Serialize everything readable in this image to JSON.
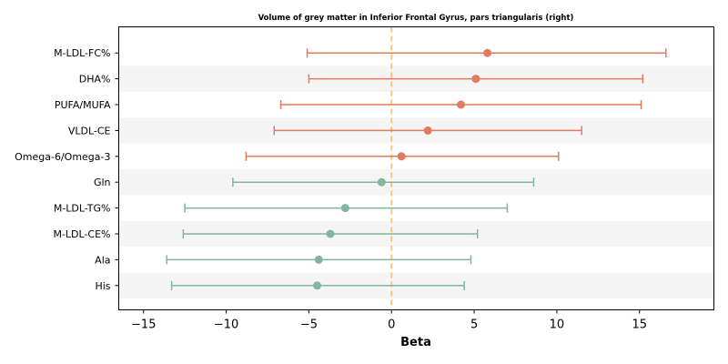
{
  "chart_data": {
    "type": "forest",
    "title": "Volume of grey matter in Inferior Frontal Gyrus, pars triangularis (right)",
    "xlabel": "Beta",
    "ylabel": "",
    "xlim": [
      -16.5,
      19.5
    ],
    "xticks": [
      -15,
      -10,
      -5,
      0,
      5,
      10,
      15
    ],
    "xtick_labels": [
      "−15",
      "−10",
      "−5",
      "0",
      "5",
      "10",
      "15"
    ],
    "reference_line": 0,
    "grid": false,
    "colors": {
      "positive": "#e07b5f",
      "negative": "#82b59b",
      "reference": "#f5c77e",
      "band": "#f5f5f5"
    },
    "rows": [
      {
        "label": "M-LDL-FC%",
        "beta": 5.8,
        "lower": -5.1,
        "upper": 16.6
      },
      {
        "label": "DHA%",
        "beta": 5.1,
        "lower": -5.0,
        "upper": 15.2
      },
      {
        "label": "PUFA/MUFA",
        "beta": 4.2,
        "lower": -6.7,
        "upper": 15.1
      },
      {
        "label": "VLDL-CE",
        "beta": 2.2,
        "lower": -7.1,
        "upper": 11.5
      },
      {
        "label": "Omega-6/Omega-3",
        "beta": 0.6,
        "lower": -8.8,
        "upper": 10.1
      },
      {
        "label": "Gln",
        "beta": -0.6,
        "lower": -9.6,
        "upper": 8.6
      },
      {
        "label": "M-LDL-TG%",
        "beta": -2.8,
        "lower": -12.5,
        "upper": 7.0
      },
      {
        "label": "M-LDL-CE%",
        "beta": -3.7,
        "lower": -12.6,
        "upper": 5.2
      },
      {
        "label": "Ala",
        "beta": -4.4,
        "lower": -13.6,
        "upper": 4.8
      },
      {
        "label": "His",
        "beta": -4.5,
        "lower": -13.3,
        "upper": 4.4
      }
    ]
  }
}
